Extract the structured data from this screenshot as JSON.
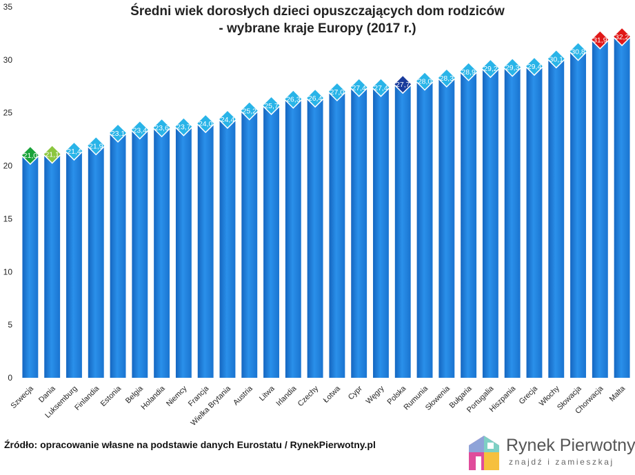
{
  "chart_data": {
    "type": "bar",
    "title_line1": "Średni wiek dorosłych dzieci opuszczających dom rodziców",
    "title_line2": "- wybrane kraje Europy (2017 r.)",
    "xlabel": "",
    "ylabel": "",
    "ylim": [
      0,
      35
    ],
    "yticks": [
      0,
      5,
      10,
      15,
      20,
      25,
      30,
      35
    ],
    "grid": false,
    "categories": [
      "Szwecja",
      "Dania",
      "Luksemburg",
      "Finlandia",
      "Estonia",
      "Belgia",
      "Holandia",
      "Niemcy",
      "Francja",
      "Wielka Brytania",
      "Austria",
      "Litwa",
      "Irlandia",
      "Czechy",
      "Łotwa",
      "Cypr",
      "Węgry",
      "Polska",
      "Rumunia",
      "Słowenia",
      "Bułgaria",
      "Portugalia",
      "Hiszpania",
      "Grecja",
      "Włochy",
      "Słowacja",
      "Chorwacja",
      "Malta"
    ],
    "values": [
      21.0,
      21.1,
      21.4,
      21.9,
      23.1,
      23.4,
      23.6,
      23.7,
      24.0,
      24.4,
      25.2,
      25.7,
      26.3,
      26.4,
      27.0,
      27.4,
      27.4,
      27.7,
      28.0,
      28.3,
      28.9,
      29.2,
      29.3,
      29.4,
      30.1,
      30.8,
      31.9,
      32.2
    ],
    "value_labels": [
      "21,0",
      "21,1",
      "21,4",
      "21,9",
      "23,1",
      "23,4",
      "23,6",
      "23,7",
      "24,0",
      "24,4",
      "25,2",
      "25,7",
      "26,3",
      "26,4",
      "27,0",
      "27,4",
      "27,4",
      "27,7",
      "28,0",
      "28,3",
      "28,9",
      "29,2",
      "29,3",
      "29,4",
      "30,1",
      "30,8",
      "31,9",
      "32,2"
    ],
    "marker_colors": [
      "#1aa33a",
      "#8cc63f",
      "#29b4e8",
      "#29b4e8",
      "#29b4e8",
      "#29b4e8",
      "#29b4e8",
      "#29b4e8",
      "#29b4e8",
      "#29b4e8",
      "#29b4e8",
      "#29b4e8",
      "#29b4e8",
      "#29b4e8",
      "#29b4e8",
      "#29b4e8",
      "#29b4e8",
      "#1a3c9c",
      "#29b4e8",
      "#29b4e8",
      "#29b4e8",
      "#29b4e8",
      "#29b4e8",
      "#29b4e8",
      "#29b4e8",
      "#29b4e8",
      "#e01818",
      "#e01818"
    ],
    "bar_color": "#1f86e0"
  },
  "source_text": "Źródło: opracowanie własne na podstawie danych Eurostatu / RynekPierwotny.pl",
  "logo": {
    "name": "Rynek Pierwotny",
    "tagline": "znajdź i zamieszkaj",
    "icon": "house-logo-icon"
  }
}
